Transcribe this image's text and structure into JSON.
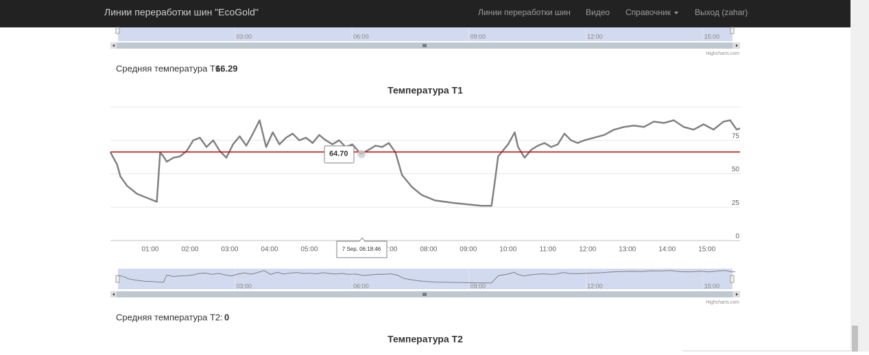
{
  "navbar": {
    "brand": "Линии переработки шин \"EcoGold\"",
    "links": [
      "Линии переработки шин",
      "Видео",
      "Справочник",
      "Выход (zahar)"
    ]
  },
  "top_navigator": {
    "xticks": [
      "03:00",
      "06:00",
      "09:00",
      "12:00",
      "15:00"
    ],
    "credits": "Highcharts.com"
  },
  "t1": {
    "average_label": "Средняя температура T1:",
    "average": 66.29
  },
  "chart_data": {
    "type": "line",
    "title": "Температура T1",
    "color": "#808080",
    "plot_line_color": "#cc0000",
    "x": [
      "00:00",
      "00:10",
      "00:15",
      "00:25",
      "00:40",
      "00:55",
      "01:05",
      "01:10",
      "01:15",
      "01:20",
      "01:25",
      "01:35",
      "01:45",
      "01:55",
      "02:05",
      "02:15",
      "02:25",
      "02:35",
      "02:45",
      "02:55",
      "03:05",
      "03:15",
      "03:25",
      "03:35",
      "03:45",
      "03:55",
      "04:05",
      "04:15",
      "04:25",
      "04:35",
      "04:45",
      "04:55",
      "05:05",
      "05:15",
      "05:25",
      "05:35",
      "05:45",
      "05:55",
      "06:05",
      "06:18",
      "06:30",
      "06:40",
      "06:50",
      "07:00",
      "07:10",
      "07:20",
      "07:35",
      "07:50",
      "08:10",
      "08:40",
      "09:20",
      "09:35",
      "09:40",
      "09:45",
      "10:00",
      "10:10",
      "10:15",
      "10:25",
      "10:35",
      "10:45",
      "10:55",
      "11:05",
      "11:15",
      "11:25",
      "11:35",
      "11:45",
      "11:55",
      "12:10",
      "12:25",
      "12:40",
      "12:55",
      "13:10",
      "13:25",
      "13:40",
      "13:55",
      "14:10",
      "14:25",
      "14:40",
      "14:55",
      "15:10",
      "15:25",
      "15:35",
      "15:45",
      "15:50"
    ],
    "values": [
      66,
      57,
      48,
      41,
      35,
      32,
      30,
      29,
      66,
      63,
      59,
      62,
      63,
      67,
      75,
      77,
      70,
      75,
      67,
      62,
      72,
      78,
      71,
      80,
      90,
      70,
      81,
      72,
      77,
      80,
      75,
      77,
      73,
      79,
      75,
      72,
      75,
      70,
      72,
      64.7,
      68,
      71,
      70,
      73,
      66,
      49,
      40,
      34,
      30,
      28,
      26,
      26,
      44,
      63,
      72,
      81,
      70,
      62,
      68,
      71,
      73,
      70,
      72,
      80,
      75,
      73,
      75,
      77,
      79,
      83,
      85,
      86,
      85,
      89,
      88,
      90,
      85,
      83,
      87,
      83,
      89,
      90,
      83,
      84
    ],
    "xlim": [
      "00:00",
      "15:50"
    ],
    "xticks": [
      "01:00",
      "02:00",
      "03:00",
      "04:00",
      "05:00",
      "06:00",
      "07:00",
      "08:00",
      "09:00",
      "10:00",
      "11:00",
      "12:00",
      "13:00",
      "14:00",
      "15:00"
    ],
    "ylim": [
      0,
      100
    ],
    "yticks": [
      0,
      25,
      50,
      75
    ],
    "grid": true,
    "tooltip": {
      "value": 64.7,
      "value_label": "64.70",
      "time": "7 Sep, 06:18:46"
    },
    "navigator": {
      "xticks": [
        "03:00",
        "06:00",
        "09:00",
        "12:00",
        "15:00"
      ],
      "credits": "Highcharts.com"
    }
  },
  "t2": {
    "average_label": "Средняя температура T2:",
    "average": 0,
    "chart_title": "Температура T2"
  }
}
